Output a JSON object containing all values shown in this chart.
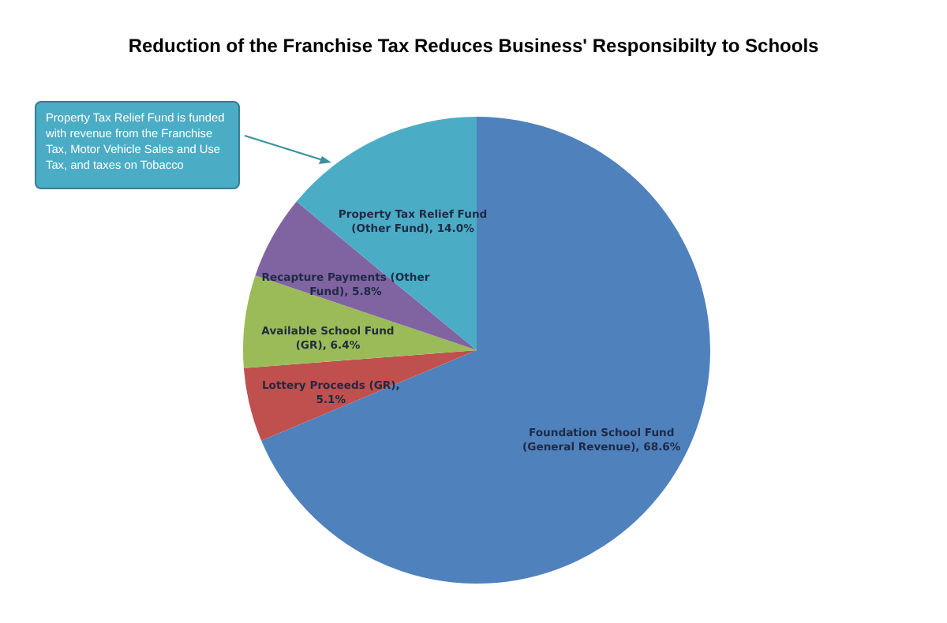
{
  "chart_data": {
    "type": "pie",
    "title": "Reduction of the Franchise Tax Reduces Business' Responsibilty to Schools",
    "categories": [
      "Foundation School Fund (General Revenue), 68.6%",
      "Lottery Proceeds (GR), 5.1%",
      "Available School Fund (GR), 6.4%",
      "Recapture Payments (Other Fund), 5.8%",
      "Property Tax Relief Fund (Other Fund), 14.0%"
    ],
    "values": [
      68.6,
      5.1,
      6.4,
      5.8,
      14.0
    ],
    "colors": [
      "#4f81bd",
      "#c0504d",
      "#9bbb59",
      "#8064a2",
      "#4bacc6"
    ],
    "annotations": [
      "Property Tax Relief Fund is funded with revenue from the Franchise Tax, Motor Vehicle Sales and Use Tax, and taxes on Tobacco"
    ]
  }
}
